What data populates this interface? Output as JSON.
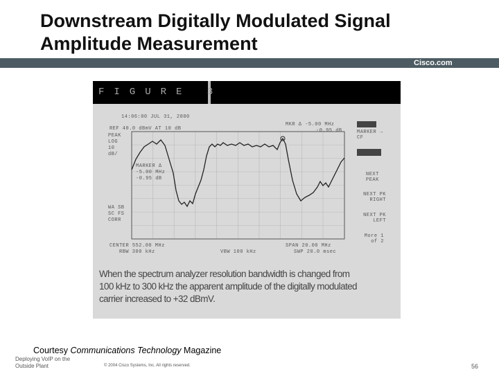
{
  "header": {
    "title_lines": [
      "Downstream Digitally Modulated Signal",
      "Amplitude Measurement"
    ],
    "brand": "Cisco.com"
  },
  "figure": {
    "label": "FIGURE 3",
    "screen": {
      "top_left": [
        "14:06:00 JUL 31, 2000",
        "REF 40.0 dBmV   AT 10 dB",
        "PEAK",
        "LOG",
        "10",
        "dB/"
      ],
      "marker_readout": [
        "MKR Δ -5.00 MHz",
        "-0.95 dB"
      ],
      "inner_marker": [
        "MARKER Δ",
        "-5.00 MHz",
        "-0.95 dB"
      ],
      "left_labels": [
        "WA SB",
        "SC FS",
        "CORR"
      ],
      "softkeys": [
        "MARKER → CF",
        "NEXT PEAK",
        "NEXT PK RIGHT",
        "NEXT PK LEFT",
        "More 1 of 2"
      ],
      "bottom": {
        "center": "CENTER 552.00 MHz",
        "rbw": "RBW 300 kHz",
        "vbw": "VBW 100 kHz",
        "span": "SPAN 20.00 MHz",
        "sweep": "SWP 20.0 msec"
      }
    },
    "caption_lines": [
      "When the spectrum analyzer resolution bandwidth is changed from",
      "100 kHz to 300 kHz the apparent amplitude of the digitally modulated",
      "carrier increased to +32 dBmV."
    ]
  },
  "courtesy": {
    "prefix": "Courtesy",
    "magazine_name": "Communications Technology",
    "suffix": "Magazine"
  },
  "footer": {
    "course_lines": [
      "Deploying VoIP on the",
      "Outside Plant"
    ],
    "copyright": "© 2004 Cisco Systems, Inc. All rights reserved.",
    "page": "56"
  }
}
